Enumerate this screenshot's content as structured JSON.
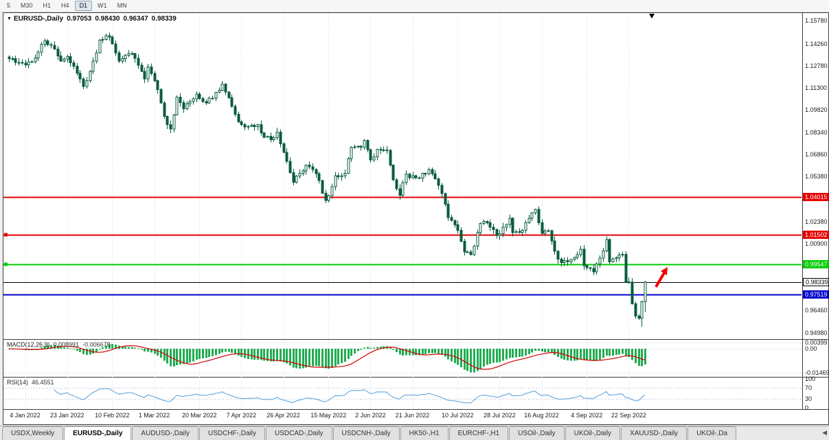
{
  "toolbar": {
    "timeframes": [
      {
        "label": "5",
        "active": false
      },
      {
        "label": "M30",
        "active": false
      },
      {
        "label": "H1",
        "active": false
      },
      {
        "label": "H4",
        "active": false
      },
      {
        "label": "D1",
        "active": true
      },
      {
        "label": "W1",
        "active": false
      },
      {
        "label": "MN",
        "active": false
      }
    ]
  },
  "icons": {
    "collapse": "▼",
    "scroll_left": "◀"
  },
  "chart": {
    "symbol": "EURUSD-,Daily",
    "ohlc": {
      "open": "0.97053",
      "high": "0.98430",
      "low": "0.96347",
      "close": "0.98339"
    },
    "price_axis": {
      "max": 1.163,
      "min": 0.945,
      "ticks": [
        {
          "label": "1.15780",
          "value": 1.1578
        },
        {
          "label": "1.14260",
          "value": 1.1426
        },
        {
          "label": "1.12780",
          "value": 1.1278
        },
        {
          "label": "1.11300",
          "value": 1.113
        },
        {
          "label": "1.09820",
          "value": 1.0982
        },
        {
          "label": "1.08340",
          "value": 1.0834
        },
        {
          "label": "1.06860",
          "value": 1.0686
        },
        {
          "label": "1.05380",
          "value": 1.0538
        },
        {
          "label": "1.02380",
          "value": 1.0238
        },
        {
          "label": "1.00900",
          "value": 1.009
        },
        {
          "label": "0.96460",
          "value": 0.9646
        },
        {
          "label": "0.94980",
          "value": 0.9498
        }
      ]
    },
    "hlines": [
      {
        "label": "1.04015",
        "value": 1.04015,
        "color": "#e60000",
        "text_color": "#ffffff",
        "width": 2,
        "left_marker": false
      },
      {
        "label": "1.01502",
        "value": 1.01502,
        "color": "#e60000",
        "text_color": "#ffffff",
        "width": 2,
        "left_marker": true
      },
      {
        "label": "0.99547",
        "value": 0.99547,
        "color": "#00cc00",
        "text_color": "#ffffff",
        "width": 2,
        "left_marker": true
      },
      {
        "label": "0.98339",
        "value": 0.98339,
        "color": "#000000",
        "text_color": "#000000",
        "box_bg": "#ffffff",
        "width": 1,
        "left_marker": false,
        "is_current_price": true
      },
      {
        "label": "0.97519",
        "value": 0.97519,
        "color": "#0000cc",
        "text_color": "#ffffff",
        "width": 2,
        "left_marker": false
      }
    ],
    "date_ticks": [
      {
        "label": "4 Jan 2022",
        "index": 5
      },
      {
        "label": "23 Jan 2022",
        "index": 18
      },
      {
        "label": "10 Feb 2022",
        "index": 32
      },
      {
        "label": "1 Mar 2022",
        "index": 45
      },
      {
        "label": "20 Mar 2022",
        "index": 59
      },
      {
        "label": "7 Apr 2022",
        "index": 72
      },
      {
        "label": "26 Apr 2022",
        "index": 85
      },
      {
        "label": "15 May 2022",
        "index": 99
      },
      {
        "label": "2 Jun 2022",
        "index": 112
      },
      {
        "label": "21 Jun 2022",
        "index": 125
      },
      {
        "label": "10 Jul 2022",
        "index": 139
      },
      {
        "label": "28 Jul 2022",
        "index": 152
      },
      {
        "label": "16 Aug 2022",
        "index": 165
      },
      {
        "label": "4 Sep 2022",
        "index": 179
      },
      {
        "label": "22 Sep 2022",
        "index": 192
      }
    ],
    "candles": {
      "count": 198,
      "bull_color": "#ffffff",
      "bear_color": "#0a5c3c",
      "outline_color": "#0a5c3c",
      "last": {
        "o": 0.97053,
        "h": 0.9843,
        "l": 0.96347,
        "c": 0.98339
      },
      "deep_low": {
        "index": 196,
        "low": 0.9538
      },
      "anchors": [
        [
          0,
          1.1325
        ],
        [
          2,
          1.13
        ],
        [
          4,
          1.1295
        ],
        [
          5,
          1.1285
        ],
        [
          8,
          1.133
        ],
        [
          11,
          1.1445
        ],
        [
          13,
          1.1415
        ],
        [
          16,
          1.131
        ],
        [
          18,
          1.134
        ],
        [
          21,
          1.123
        ],
        [
          23,
          1.114
        ],
        [
          25,
          1.124
        ],
        [
          28,
          1.145
        ],
        [
          31,
          1.147
        ],
        [
          32,
          1.1425
        ],
        [
          34,
          1.131
        ],
        [
          38,
          1.136
        ],
        [
          41,
          1.124
        ],
        [
          42,
          1.119
        ],
        [
          43,
          1.127
        ],
        [
          46,
          1.112
        ],
        [
          48,
          1.094
        ],
        [
          50,
          1.0855
        ],
        [
          52,
          1.107
        ],
        [
          54,
          1.099
        ],
        [
          58,
          1.109
        ],
        [
          61,
          1.103
        ],
        [
          64,
          1.11
        ],
        [
          66,
          1.1155
        ],
        [
          68,
          1.1065
        ],
        [
          71,
          1.0905
        ],
        [
          74,
          1.0875
        ],
        [
          77,
          1.0885
        ],
        [
          78,
          1.083
        ],
        [
          81,
          1.0785
        ],
        [
          83,
          1.0835
        ],
        [
          86,
          1.064
        ],
        [
          88,
          1.05
        ],
        [
          90,
          1.056
        ],
        [
          92,
          1.0615
        ],
        [
          95,
          1.0558
        ],
        [
          98,
          1.038
        ],
        [
          99,
          1.0412
        ],
        [
          101,
          1.0545
        ],
        [
          104,
          1.056
        ],
        [
          106,
          1.0735
        ],
        [
          109,
          1.0735
        ],
        [
          110,
          1.078
        ],
        [
          112,
          1.065
        ],
        [
          114,
          1.072
        ],
        [
          117,
          1.0715
        ],
        [
          118,
          1.0615
        ],
        [
          119,
          1.0518
        ],
        [
          121,
          1.0413
        ],
        [
          123,
          1.0555
        ],
        [
          126,
          1.053
        ],
        [
          129,
          1.0555
        ],
        [
          130,
          1.0585
        ],
        [
          133,
          1.048
        ],
        [
          134,
          1.0425
        ],
        [
          136,
          1.0265
        ],
        [
          139,
          1.018
        ],
        [
          141,
          1.0037
        ],
        [
          143,
          1.0018
        ],
        [
          146,
          1.0226
        ],
        [
          148,
          1.023
        ],
        [
          151,
          1.0145
        ],
        [
          154,
          1.022
        ],
        [
          155,
          1.026
        ],
        [
          156,
          1.0165
        ],
        [
          159,
          1.018
        ],
        [
          162,
          1.0298
        ],
        [
          163,
          1.032
        ],
        [
          165,
          1.016
        ],
        [
          167,
          1.0179
        ],
        [
          169,
          1.004
        ],
        [
          171,
          0.9966
        ],
        [
          173,
          0.997
        ],
        [
          175,
          1.0
        ],
        [
          177,
          1.0055
        ],
        [
          178,
          0.9945
        ],
        [
          180,
          0.9926
        ],
        [
          181,
          0.9903
        ],
        [
          183,
          0.9995
        ],
        [
          185,
          1.0119
        ],
        [
          186,
          0.997
        ],
        [
          188,
          0.9998
        ],
        [
          189,
          1.0015
        ],
        [
          190,
          1.002
        ],
        [
          191,
          0.9837
        ],
        [
          192,
          0.9835
        ],
        [
          193,
          0.969
        ],
        [
          194,
          0.9609
        ],
        [
          195,
          0.9594
        ],
        [
          196,
          0.9705
        ],
        [
          197,
          0.98339
        ]
      ]
    },
    "annotation_arrow": {
      "color": "#f20000"
    },
    "shift_marker": true
  },
  "macd": {
    "name": "MACD(12,26,9)",
    "value1": "0.008991",
    "value2": "-0.006678",
    "fast": 12,
    "slow": 26,
    "signal": 9,
    "max": 0.0055,
    "min": -0.0175,
    "hist_color": "#21ad52",
    "signal_color": "#d40000",
    "axis": [
      {
        "label": "0.00399",
        "value": 0.00399
      },
      {
        "label": "0.00",
        "value": 0
      },
      {
        "label": "-0.01469",
        "value": -0.01469
      }
    ]
  },
  "rsi": {
    "name": "RSI(14)",
    "value": "46.4551",
    "period": 14,
    "line_color": "#4f9ede",
    "levels": [
      70,
      30
    ],
    "axis": [
      {
        "label": "100",
        "value": 100
      },
      {
        "label": "70",
        "value": 70
      },
      {
        "label": "30",
        "value": 30
      },
      {
        "label": "0",
        "value": 0
      }
    ]
  },
  "tabs": [
    {
      "label": "USDX,Weekly",
      "active": false
    },
    {
      "label": "EURUSD-,Daily",
      "active": true
    },
    {
      "label": "AUDUSD-,Daily",
      "active": false
    },
    {
      "label": "USDCHF-,Daily",
      "active": false
    },
    {
      "label": "USDCAD-,Daily",
      "active": false
    },
    {
      "label": "USDCNH-,Daily",
      "active": false
    },
    {
      "label": "HK50-,H1",
      "active": false
    },
    {
      "label": "EURCHF-,H1",
      "active": false
    },
    {
      "label": "USOil-,Daily",
      "active": false
    },
    {
      "label": "UKOil-,Daily",
      "active": false
    },
    {
      "label": "XAUUSD-,Daily",
      "active": false
    },
    {
      "label": "UKOil-,Da",
      "active": false
    }
  ],
  "tabbar": {
    "scroll_icon": "◀"
  }
}
